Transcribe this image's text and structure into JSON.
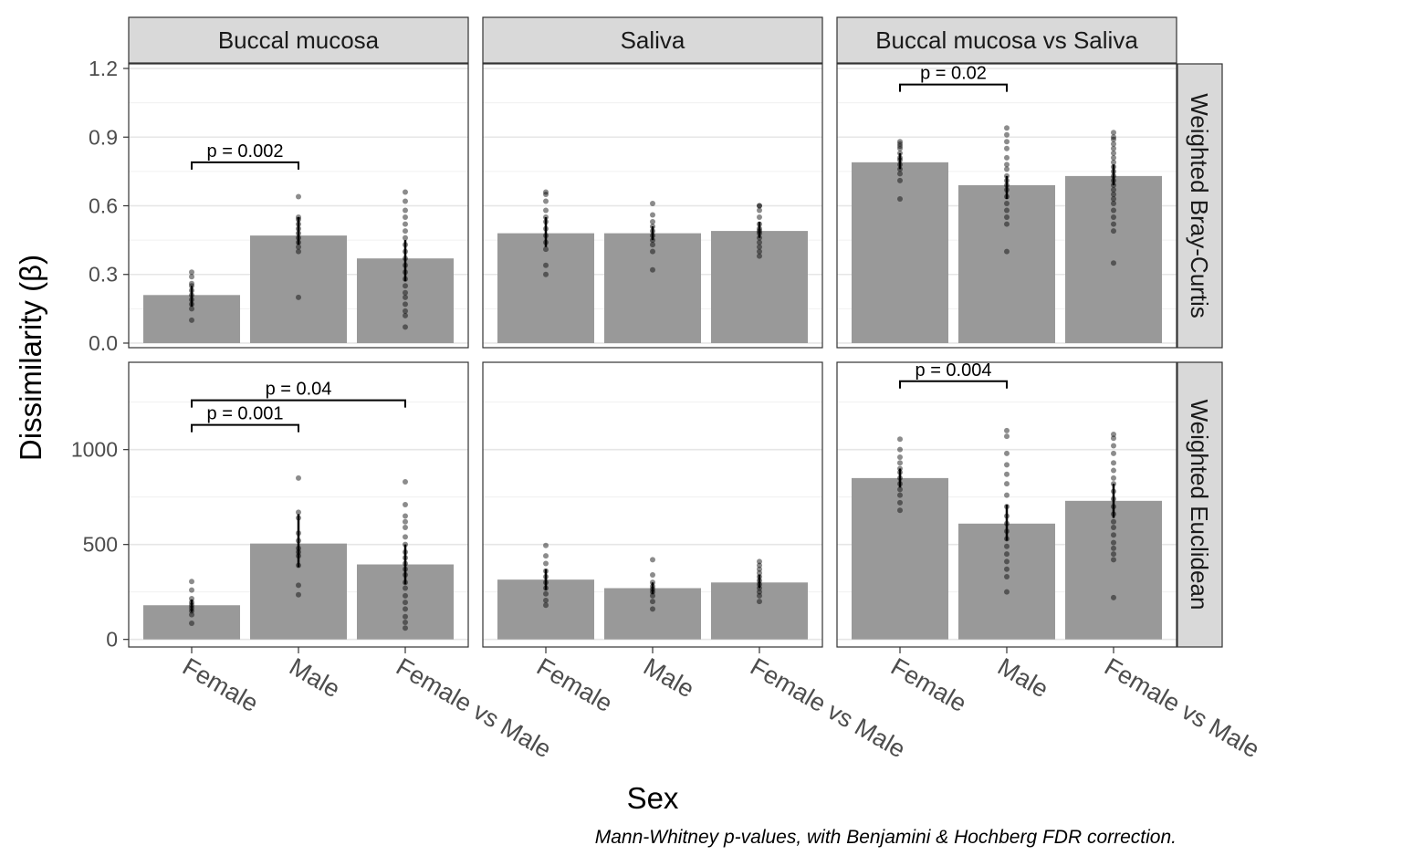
{
  "chart_data": {
    "type": "bar",
    "xlabel": "Sex",
    "ylabel": "Dissimilarity (β)",
    "caption": "Mann-Whitney p-values, with Benjamini & Hochberg FDR correction.",
    "categories": [
      "Female",
      "Male",
      "Female vs Male"
    ],
    "columns": [
      "Buccal mucosa",
      "Saliva",
      "Buccal mucosa vs Saliva"
    ],
    "rows": [
      {
        "label": "Weighted Bray-Curtis",
        "ylim": [
          -0.02,
          1.22
        ],
        "yticks": [
          0,
          0.3,
          0.6,
          0.9,
          1.2
        ],
        "yticklabels": [
          "0.0",
          "0.3",
          "0.6",
          "0.9",
          "1.2"
        ]
      },
      {
        "label": "Weighted Euclidean",
        "ylim": [
          -40,
          1460
        ],
        "yticks": [
          0,
          500,
          1000
        ],
        "yticklabels": [
          "0",
          "500",
          "1000"
        ]
      }
    ],
    "panels": [
      {
        "row": 0,
        "col": 0,
        "values": [
          0.21,
          0.47,
          0.37
        ],
        "errors": [
          [
            0.16,
            0.25
          ],
          [
            0.43,
            0.55
          ],
          [
            0.27,
            0.45
          ]
        ],
        "points": [
          [
            0.1,
            0.15,
            0.17,
            0.19,
            0.21,
            0.23,
            0.25,
            0.26,
            0.29,
            0.31
          ],
          [
            0.2,
            0.4,
            0.42,
            0.44,
            0.46,
            0.48,
            0.5,
            0.52,
            0.54,
            0.55,
            0.64
          ],
          [
            0.07,
            0.12,
            0.14,
            0.17,
            0.2,
            0.22,
            0.25,
            0.28,
            0.31,
            0.34,
            0.37,
            0.4,
            0.43,
            0.46,
            0.49,
            0.52,
            0.55,
            0.58,
            0.62,
            0.66
          ]
        ],
        "comparisons": [
          {
            "from": 0,
            "to": 1,
            "y": 0.79,
            "label": "p = 0.002"
          }
        ]
      },
      {
        "row": 0,
        "col": 1,
        "values": [
          0.48,
          0.48,
          0.49
        ],
        "errors": [
          [
            0.42,
            0.55
          ],
          [
            0.45,
            0.51
          ],
          [
            0.46,
            0.53
          ]
        ],
        "points": [
          [
            0.3,
            0.34,
            0.41,
            0.44,
            0.47,
            0.5,
            0.53,
            0.55,
            0.58,
            0.62,
            0.65,
            0.66
          ],
          [
            0.32,
            0.4,
            0.43,
            0.45,
            0.47,
            0.49,
            0.51,
            0.53,
            0.56,
            0.61
          ],
          [
            0.38,
            0.4,
            0.42,
            0.44,
            0.46,
            0.48,
            0.49,
            0.5,
            0.52,
            0.55,
            0.58,
            0.6,
            0.6
          ]
        ],
        "comparisons": []
      },
      {
        "row": 0,
        "col": 2,
        "values": [
          0.79,
          0.69,
          0.73
        ],
        "errors": [
          [
            0.76,
            0.83
          ],
          [
            0.63,
            0.73
          ],
          [
            0.69,
            0.78
          ]
        ],
        "points": [
          [
            0.63,
            0.71,
            0.74,
            0.76,
            0.78,
            0.8,
            0.81,
            0.83,
            0.85,
            0.86,
            0.87,
            0.88
          ],
          [
            0.4,
            0.52,
            0.55,
            0.58,
            0.61,
            0.64,
            0.67,
            0.69,
            0.71,
            0.73,
            0.76,
            0.78,
            0.81,
            0.85,
            0.88,
            0.91,
            0.94
          ],
          [
            0.35,
            0.49,
            0.52,
            0.55,
            0.58,
            0.61,
            0.63,
            0.65,
            0.67,
            0.69,
            0.71,
            0.73,
            0.75,
            0.77,
            0.79,
            0.81,
            0.83,
            0.85,
            0.87,
            0.89,
            0.9,
            0.92
          ]
        ],
        "comparisons": [
          {
            "from": 0,
            "to": 1,
            "y": 1.13,
            "label": "p = 0.02"
          }
        ]
      },
      {
        "row": 1,
        "col": 0,
        "values": [
          180,
          505,
          395
        ],
        "errors": [
          [
            145,
            210
          ],
          [
            380,
            660
          ],
          [
            290,
            500
          ]
        ],
        "points": [
          [
            85,
            130,
            150,
            165,
            180,
            195,
            215,
            260,
            305
          ],
          [
            235,
            285,
            390,
            440,
            460,
            480,
            520,
            560,
            640,
            670,
            850
          ],
          [
            60,
            90,
            120,
            160,
            195,
            230,
            270,
            300,
            340,
            370,
            400,
            430,
            460,
            500,
            540,
            590,
            620,
            650,
            710,
            830
          ]
        ],
        "comparisons": [
          {
            "from": 0,
            "to": 1,
            "y": 1130,
            "label": "p = 0.001"
          },
          {
            "from": 0,
            "to": 2,
            "y": 1260,
            "label": "p = 0.04"
          }
        ]
      },
      {
        "row": 1,
        "col": 1,
        "values": [
          315,
          270,
          300
        ],
        "errors": [
          [
            260,
            370
          ],
          [
            240,
            300
          ],
          [
            270,
            340
          ]
        ],
        "points": [
          [
            180,
            205,
            240,
            270,
            300,
            330,
            360,
            400,
            440,
            495
          ],
          [
            160,
            200,
            230,
            250,
            265,
            280,
            300,
            340,
            420
          ],
          [
            200,
            230,
            250,
            270,
            290,
            310,
            330,
            350,
            370,
            390,
            410
          ]
        ],
        "comparisons": []
      },
      {
        "row": 1,
        "col": 2,
        "values": [
          850,
          610,
          730
        ],
        "errors": [
          [
            800,
            900
          ],
          [
            520,
            710
          ],
          [
            640,
            820
          ]
        ],
        "points": [
          [
            680,
            720,
            760,
            790,
            820,
            850,
            880,
            900,
            930,
            960,
            1000,
            1055
          ],
          [
            250,
            330,
            370,
            410,
            450,
            490,
            530,
            570,
            610,
            650,
            700,
            760,
            820,
            870,
            920,
            980,
            1070,
            1100
          ],
          [
            220,
            420,
            450,
            480,
            510,
            550,
            590,
            620,
            660,
            700,
            740,
            780,
            820,
            850,
            890,
            930,
            980,
            1020,
            1060,
            1080
          ]
        ],
        "comparisons": [
          {
            "from": 0,
            "to": 1,
            "y": 1360,
            "label": "p = 0.004"
          }
        ]
      }
    ]
  }
}
